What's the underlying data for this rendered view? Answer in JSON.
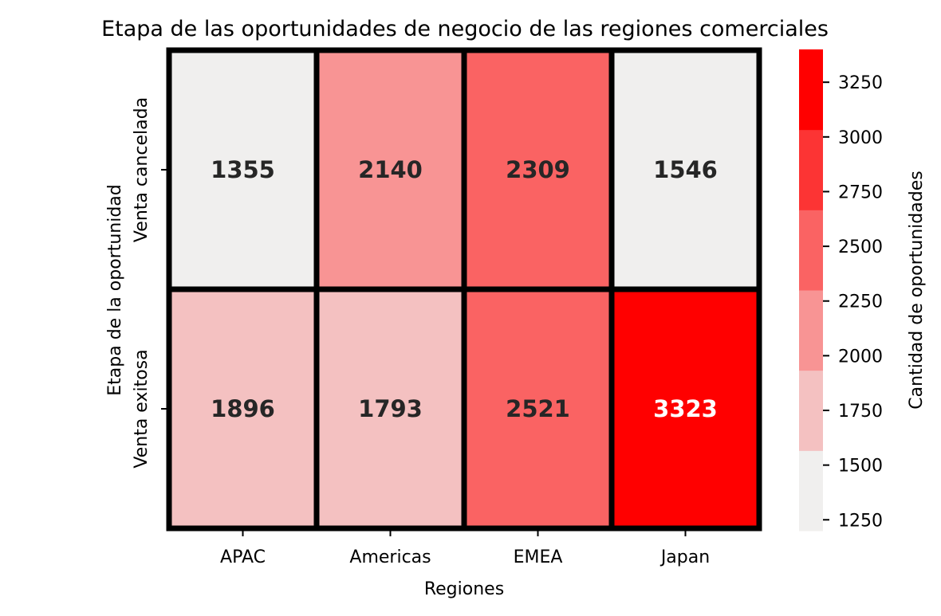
{
  "chart_data": {
    "type": "heatmap",
    "title": "Etapa de las oportunidades de negocio de las regiones comerciales",
    "xlabel": "Regiones",
    "ylabel": "Etapa de la oportunidad",
    "x_categories": [
      "APAC",
      "Americas",
      "EMEA",
      "Japan"
    ],
    "y_categories": [
      "Venta cancelada",
      "Venta exitosa"
    ],
    "values": [
      [
        1355,
        2140,
        2309,
        1546
      ],
      [
        1896,
        1793,
        2521,
        3323
      ]
    ],
    "colorbar": {
      "label": "Cantidad de oportunidades",
      "range": [
        1200,
        3400
      ],
      "ticks": [
        "1250",
        "1500",
        "1750",
        "2000",
        "2250",
        "2500",
        "2750",
        "3000",
        "3250"
      ],
      "bins": [
        {
          "from": 1200,
          "to": 1566.67,
          "color": "#f0efee"
        },
        {
          "from": 1566.67,
          "to": 1933.33,
          "color": "#f4c1c1"
        },
        {
          "from": 1933.33,
          "to": 2300,
          "color": "#f89494"
        },
        {
          "from": 2300,
          "to": 2666.67,
          "color": "#fa6363"
        },
        {
          "from": 2666.67,
          "to": 3033.33,
          "color": "#fc3434"
        },
        {
          "from": 3033.33,
          "to": 3400,
          "color": "#ff0000"
        }
      ]
    },
    "annotation_colors": {
      "dark": "#262626",
      "light": "#ffffff"
    }
  }
}
